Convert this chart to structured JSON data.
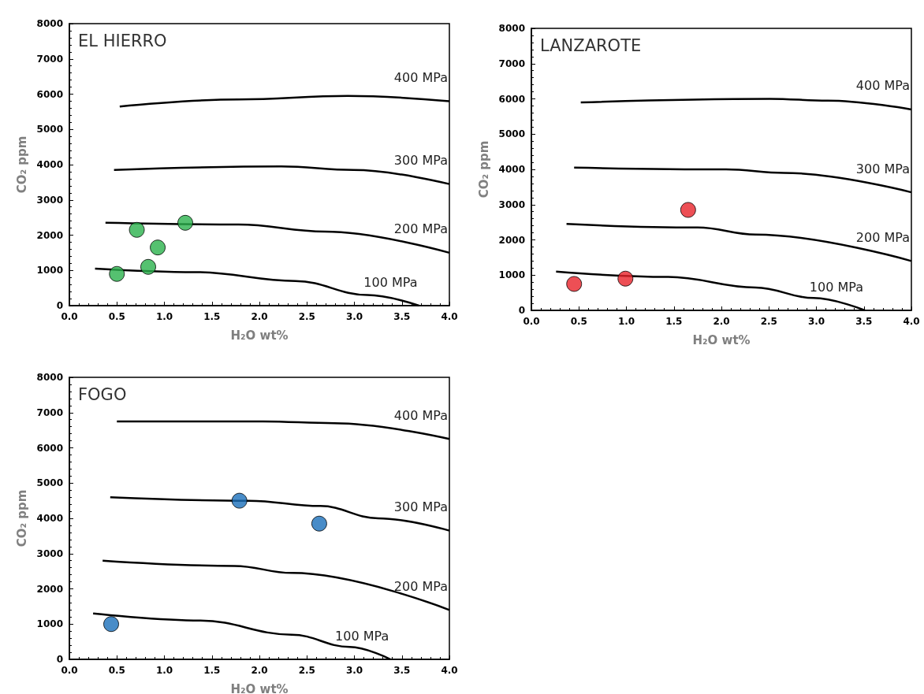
{
  "chart_data": [
    {
      "type": "scatter",
      "title": "EL HIERRO",
      "xlabel": "H₂O wt%",
      "ylabel": "CO₂ ppm",
      "marker": "circle",
      "grid": false,
      "xlim": [
        0,
        4
      ],
      "xticks": [
        {
          "value": 0,
          "label": "0.0"
        },
        {
          "value": 0.5,
          "label": "0.5"
        },
        {
          "value": 1,
          "label": "1.0"
        },
        {
          "value": 1.5,
          "label": "1.5"
        },
        {
          "value": 2,
          "label": "2.0"
        },
        {
          "value": 2.5,
          "label": "2.5"
        },
        {
          "value": 3,
          "label": "3.0"
        },
        {
          "value": 3.5,
          "label": "3.5"
        },
        {
          "value": 4,
          "label": "4.0"
        }
      ],
      "ylim": [
        0,
        8000
      ],
      "yticks": [
        0,
        1000,
        2000,
        3000,
        4000,
        5000,
        6000,
        7000,
        8000
      ],
      "series": [
        {
          "color": "#2bb24c",
          "x": [
            0.5,
            0.71,
            0.93,
            0.83,
            1.22
          ],
          "values": [
            900,
            2150,
            1650,
            1100,
            2350
          ]
        },
        {
          "type": "line",
          "name": "400 MPa",
          "marker": "none",
          "color": "#000000",
          "x": [
            0.53,
            1.78,
            2.93,
            4.0
          ],
          "values": [
            5650,
            5850,
            5950,
            5800
          ]
        },
        {
          "type": "line",
          "name": "300 MPa",
          "marker": "none",
          "color": "#000000",
          "x": [
            0.47,
            2.23,
            2.99,
            4.0
          ],
          "values": [
            3850,
            3950,
            3850,
            3450
          ]
        },
        {
          "type": "line",
          "name": "200 MPa",
          "marker": "none",
          "color": "#000000",
          "x": [
            0.38,
            1.78,
            2.69,
            4.0
          ],
          "values": [
            2350,
            2300,
            2100,
            1500
          ]
        },
        {
          "type": "line",
          "name": "100 MPa",
          "marker": "none",
          "color": "#000000",
          "x": [
            0.27,
            1.33,
            2.38,
            3.14,
            3.68
          ],
          "values": [
            1050,
            950,
            700,
            300,
            0
          ]
        }
      ]
    },
    {
      "type": "scatter",
      "title": "LANZAROTE",
      "xlabel": "H₂O wt%",
      "ylabel": "CO₂ ppm",
      "marker": "circle",
      "grid": false,
      "xlim": [
        0,
        4
      ],
      "xticks": [
        {
          "value": 0,
          "label": "0.0"
        },
        {
          "value": 0.5,
          "label": "0.5"
        },
        {
          "value": 1,
          "label": "1.0"
        },
        {
          "value": 1.5,
          "label": "1.5"
        },
        {
          "value": 2,
          "label": "2.0"
        },
        {
          "value": 2.5,
          "label": "2.5"
        },
        {
          "value": 3,
          "label": "3.0"
        },
        {
          "value": 3.5,
          "label": "3.5"
        },
        {
          "value": 4,
          "label": "4.0"
        }
      ],
      "ylim": [
        0,
        8000
      ],
      "yticks": [
        0,
        1000,
        2000,
        3000,
        4000,
        5000,
        6000,
        7000,
        8000
      ],
      "series": [
        {
          "color": "#e8232a",
          "x": [
            0.45,
            0.99,
            1.65
          ],
          "values": [
            750,
            900,
            2850
          ]
        },
        {
          "type": "line",
          "name": "400 MPa",
          "marker": "none",
          "color": "#000000",
          "x": [
            0.52,
            2.51,
            3.12,
            4.0
          ],
          "values": [
            5900,
            6000,
            5950,
            5700
          ]
        },
        {
          "type": "line",
          "name": "300 MPa",
          "marker": "none",
          "color": "#000000",
          "x": [
            0.45,
            2.05,
            2.66,
            4.0
          ],
          "values": [
            4050,
            4000,
            3900,
            3350
          ]
        },
        {
          "type": "line",
          "name": "200 MPa",
          "marker": "none",
          "color": "#000000",
          "x": [
            0.37,
            1.75,
            2.36,
            4.0
          ],
          "values": [
            2450,
            2350,
            2150,
            1400
          ]
        },
        {
          "type": "line",
          "name": "100 MPa",
          "marker": "none",
          "color": "#000000",
          "x": [
            0.26,
            1.44,
            2.36,
            2.97,
            3.51
          ],
          "values": [
            1100,
            950,
            650,
            350,
            0
          ]
        }
      ]
    },
    {
      "type": "scatter",
      "title": "FOGO",
      "xlabel": "H₂O wt%",
      "ylabel": "CO₂ ppm",
      "marker": "circle",
      "grid": false,
      "xlim": [
        0,
        4
      ],
      "xticks": [
        {
          "value": 0,
          "label": "0.0"
        },
        {
          "value": 0.5,
          "label": "0.5"
        },
        {
          "value": 1,
          "label": "1.0"
        },
        {
          "value": 1.5,
          "label": "1.5"
        },
        {
          "value": 2,
          "label": "2.0"
        },
        {
          "value": 2.5,
          "label": "2.5"
        },
        {
          "value": 3,
          "label": "3.0"
        },
        {
          "value": 3.5,
          "label": "3.5"
        },
        {
          "value": 4,
          "label": "4.0"
        }
      ],
      "ylim": [
        0,
        8000
      ],
      "yticks": [
        0,
        1000,
        2000,
        3000,
        4000,
        5000,
        6000,
        7000,
        8000
      ],
      "series": [
        {
          "color": "#1a6fba",
          "x": [
            0.44,
            1.79,
            2.63
          ],
          "values": [
            1000,
            4500,
            3850
          ]
        },
        {
          "type": "line",
          "name": "400 MPa",
          "marker": "none",
          "color": "#000000",
          "x": [
            0.5,
            2.04,
            2.79,
            4.0
          ],
          "values": [
            6750,
            6750,
            6700,
            6250
          ]
        },
        {
          "type": "line",
          "name": "300 MPa",
          "marker": "none",
          "color": "#000000",
          "x": [
            0.43,
            1.89,
            2.64,
            3.25,
            4.0
          ],
          "values": [
            4600,
            4500,
            4350,
            4000,
            3650
          ]
        },
        {
          "type": "line",
          "name": "200 MPa",
          "marker": "none",
          "color": "#000000",
          "x": [
            0.35,
            1.74,
            2.34,
            4.0
          ],
          "values": [
            2800,
            2650,
            2450,
            1400
          ]
        },
        {
          "type": "line",
          "name": "100 MPa",
          "marker": "none",
          "color": "#000000",
          "x": [
            0.25,
            1.38,
            2.34,
            2.95,
            3.38
          ],
          "values": [
            1300,
            1100,
            700,
            350,
            0
          ]
        }
      ]
    }
  ]
}
